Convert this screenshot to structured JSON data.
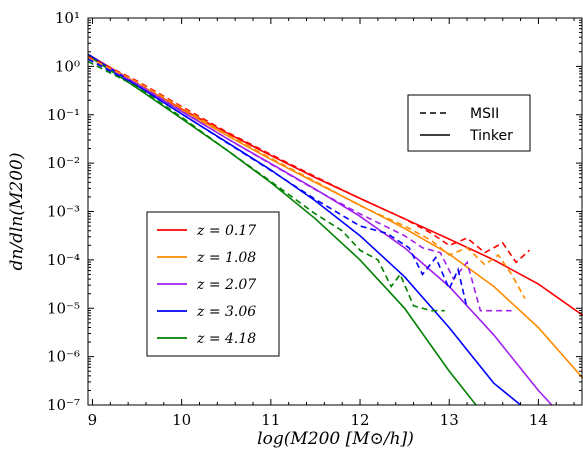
{
  "chart_data": {
    "type": "line",
    "title": "",
    "xlabel": "log(M200 [M⊙/h])",
    "ylabel": "dn/dln(M200)",
    "xlim": [
      8.95,
      14.5
    ],
    "ylim_log10": [
      -7,
      1
    ],
    "yscale": "log",
    "grid": false,
    "x_ticks": [
      9,
      10,
      11,
      12,
      13,
      14
    ],
    "x_tick_labels": [
      "9",
      "10",
      "11",
      "12",
      "13",
      "14"
    ],
    "y_ticks_log10": [
      -7,
      -6,
      -5,
      -4,
      -3,
      -2,
      -1,
      0,
      1
    ],
    "y_tick_labels": [
      "10⁻⁷",
      "10⁻⁶",
      "10⁻⁵",
      "10⁻⁴",
      "10⁻³",
      "10⁻²",
      "10⁻¹",
      "10⁰",
      "10¹"
    ],
    "style_legend": {
      "placement": "top-right",
      "entries": [
        {
          "label": "MSII",
          "style": "dashed"
        },
        {
          "label": "Tinker",
          "style": "solid"
        }
      ]
    },
    "redshift_legend": {
      "placement": "lower-left",
      "entries": [
        {
          "label": "z = 0.17",
          "color": "#ff0000"
        },
        {
          "label": "z = 1.08",
          "color": "#ff8c00"
        },
        {
          "label": "z = 2.07",
          "color": "#a020f0"
        },
        {
          "label": "z = 3.06",
          "color": "#0000ff"
        },
        {
          "label": "z = 4.18",
          "color": "#008000"
        }
      ]
    },
    "series": [
      {
        "color": "#ff0000",
        "style": "solid",
        "x": [
          8.95,
          9.5,
          10.0,
          10.5,
          11.0,
          11.5,
          12.0,
          12.5,
          13.0,
          13.5,
          14.0,
          14.5
        ],
        "log10_y": [
          0.25,
          -0.35,
          -0.88,
          -1.37,
          -1.84,
          -2.3,
          -2.73,
          -3.15,
          -3.57,
          -4.0,
          -4.5,
          -5.15
        ]
      },
      {
        "color": "#ff8c00",
        "style": "solid",
        "x": [
          8.95,
          9.5,
          10.0,
          10.5,
          11.0,
          11.5,
          12.0,
          12.5,
          13.0,
          13.5,
          14.0,
          14.5
        ],
        "log10_y": [
          0.25,
          -0.35,
          -0.9,
          -1.42,
          -1.92,
          -2.4,
          -2.87,
          -3.35,
          -3.88,
          -4.55,
          -5.4,
          -6.45
        ]
      },
      {
        "color": "#a020f0",
        "style": "solid",
        "x": [
          8.95,
          9.5,
          10.0,
          10.5,
          11.0,
          11.5,
          12.0,
          12.5,
          13.0,
          13.5,
          14.0,
          14.15
        ],
        "log10_y": [
          0.25,
          -0.37,
          -0.93,
          -1.48,
          -2.01,
          -2.54,
          -3.1,
          -3.75,
          -4.55,
          -5.55,
          -6.7,
          -7.0
        ]
      },
      {
        "color": "#0000ff",
        "style": "solid",
        "x": [
          8.95,
          9.5,
          10.0,
          10.5,
          11.0,
          11.5,
          12.0,
          12.5,
          13.0,
          13.5,
          13.8
        ],
        "log10_y": [
          0.25,
          -0.4,
          -0.98,
          -1.56,
          -2.14,
          -2.78,
          -3.5,
          -4.35,
          -5.4,
          -6.55,
          -7.0
        ]
      },
      {
        "color": "#008000",
        "style": "solid",
        "x": [
          8.95,
          9.5,
          10.0,
          10.5,
          11.0,
          11.5,
          12.0,
          12.5,
          13.0,
          13.3
        ],
        "log10_y": [
          0.22,
          -0.45,
          -1.08,
          -1.72,
          -2.4,
          -3.15,
          -4.0,
          -5.0,
          -6.3,
          -7.0
        ]
      },
      {
        "color": "#ff0000",
        "style": "dashed",
        "x": [
          8.95,
          9.5,
          10.0,
          10.5,
          11.0,
          11.5,
          12.0,
          12.5,
          12.8,
          13.0,
          13.2,
          13.4,
          13.6,
          13.75,
          13.9
        ],
        "log10_y": [
          0.2,
          -0.3,
          -0.83,
          -1.35,
          -1.82,
          -2.28,
          -2.73,
          -3.15,
          -3.45,
          -3.7,
          -3.55,
          -3.85,
          -3.65,
          -4.05,
          -3.8
        ]
      },
      {
        "color": "#ff8c00",
        "style": "dashed",
        "x": [
          8.95,
          9.5,
          10.0,
          10.5,
          11.0,
          11.5,
          12.0,
          12.5,
          12.8,
          13.0,
          13.2,
          13.4,
          13.55,
          13.7,
          13.85
        ],
        "log10_y": [
          0.18,
          -0.32,
          -0.85,
          -1.4,
          -1.9,
          -2.38,
          -2.88,
          -3.3,
          -3.6,
          -3.9,
          -3.75,
          -4.1,
          -3.9,
          -4.3,
          -4.8
        ]
      },
      {
        "color": "#a020f0",
        "style": "dashed",
        "x": [
          8.95,
          9.5,
          10.0,
          10.5,
          11.0,
          11.5,
          12.0,
          12.5,
          12.7,
          12.9,
          13.05,
          13.2,
          13.35,
          13.7
        ],
        "log10_y": [
          0.15,
          -0.36,
          -0.92,
          -1.48,
          -2.02,
          -2.55,
          -3.05,
          -3.5,
          -3.75,
          -3.85,
          -4.4,
          -4.05,
          -5.05,
          -5.05
        ]
      },
      {
        "color": "#0000ff",
        "style": "dashed",
        "x": [
          8.95,
          9.5,
          10.0,
          10.5,
          11.0,
          11.5,
          12.0,
          12.3,
          12.55,
          12.7,
          12.85,
          13.0,
          13.1,
          13.2
        ],
        "log10_y": [
          0.15,
          -0.4,
          -0.98,
          -1.57,
          -2.15,
          -2.75,
          -3.3,
          -3.45,
          -3.75,
          -4.3,
          -3.95,
          -4.6,
          -4.2,
          -5.0
        ]
      },
      {
        "color": "#008000",
        "style": "dashed",
        "x": [
          8.95,
          9.5,
          10.0,
          10.5,
          11.0,
          11.5,
          11.8,
          12.0,
          12.2,
          12.35,
          12.45,
          12.6,
          12.8,
          12.95
        ],
        "log10_y": [
          0.1,
          -0.42,
          -1.05,
          -1.72,
          -2.38,
          -3.05,
          -3.4,
          -3.8,
          -4.0,
          -4.55,
          -4.3,
          -4.95,
          -5.05,
          -5.05
        ]
      }
    ]
  }
}
